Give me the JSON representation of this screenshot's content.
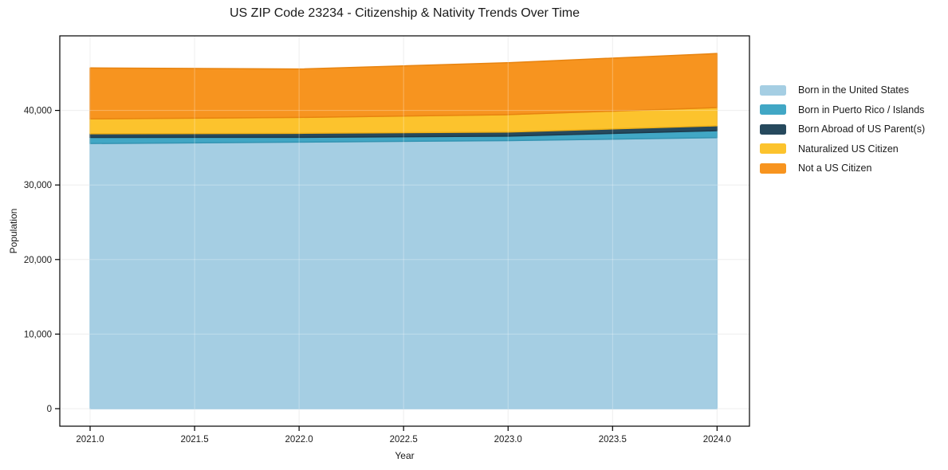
{
  "chart_data": {
    "type": "area",
    "stacked": true,
    "title": "US ZIP Code 23234 - Citizenship & Nativity Trends Over Time",
    "xlabel": "Year",
    "ylabel": "Population",
    "x": [
      2021,
      2022,
      2023,
      2024
    ],
    "series": [
      {
        "name": "Born in the United States",
        "color": "#a5cee3",
        "edge_color": "#8cbfda",
        "values": [
          35560,
          35750,
          35950,
          36350
        ]
      },
      {
        "name": "Born in Puerto Rico / Islands",
        "color": "#41a7c5",
        "edge_color": "#3494b2",
        "values": [
          820,
          640,
          600,
          930
        ]
      },
      {
        "name": "Born Abroad of US Parent(s)",
        "color": "#26495d",
        "edge_color": "#1c3a4b",
        "values": [
          490,
          540,
          550,
          660
        ]
      },
      {
        "name": "Naturalized US Citizen",
        "color": "#fcc32d",
        "edge_color": "#efb017",
        "values": [
          2000,
          2130,
          2330,
          2440
        ]
      },
      {
        "name": "Not a US Citizen",
        "color": "#f7941f",
        "edge_color": "#e88410",
        "values": [
          6830,
          6490,
          6970,
          7250
        ]
      }
    ],
    "stack_totals": [
      45700,
      45550,
      46400,
      47630
    ],
    "xlim": [
      2020.855,
      2024.155
    ],
    "ylim": [
      -2350,
      50000
    ],
    "x_ticks": [
      2021.0,
      2021.5,
      2022.0,
      2022.5,
      2023.0,
      2023.5,
      2024.0
    ],
    "x_tick_labels": [
      "2021.0",
      "2021.5",
      "2022.0",
      "2022.5",
      "2023.0",
      "2023.5",
      "2024.0"
    ],
    "y_ticks": [
      0,
      10000,
      20000,
      30000,
      40000
    ],
    "y_tick_labels": [
      "0",
      "10,000",
      "20,000",
      "30,000",
      "40,000"
    ],
    "grid": true,
    "grid_color": "#e8e8e8",
    "grid_overlay_color": "rgba(255,255,255,0.3)",
    "spine_color": "#000000",
    "text_color": "#1a1a1a",
    "background_color": "#ffffff",
    "legend_position": "right"
  }
}
